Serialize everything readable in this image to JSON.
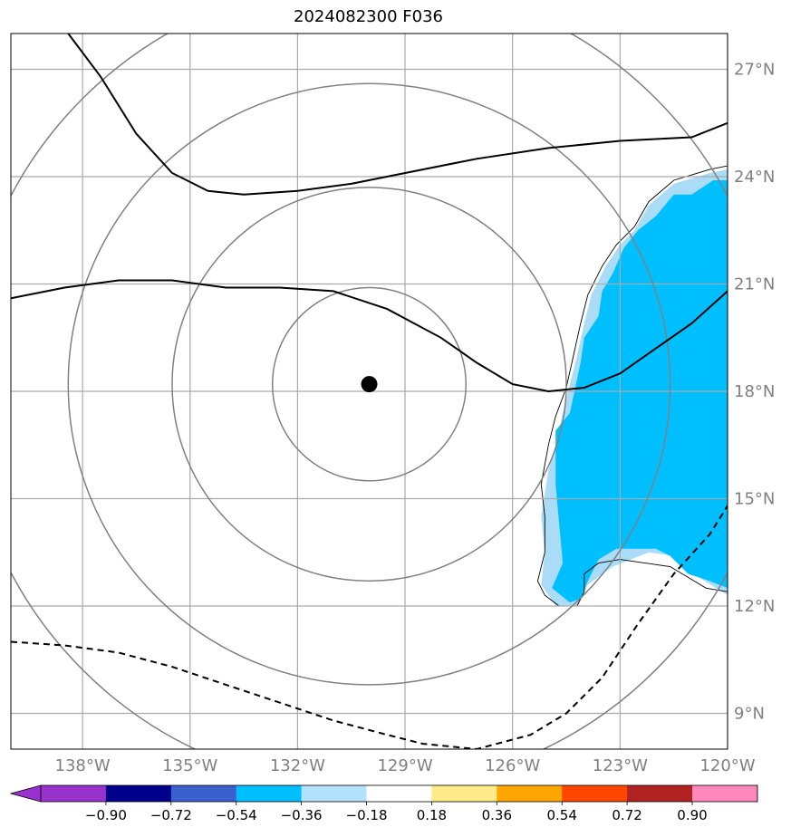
{
  "title": "2024082300 F036",
  "chart_data": {
    "type": "map",
    "title": "2024082300 F036",
    "projection": "equirectangular",
    "lon_range": [
      -140,
      -120
    ],
    "lat_range": [
      8,
      28
    ],
    "x_ticks": [
      {
        "value": -138,
        "label": "138°W"
      },
      {
        "value": -135,
        "label": "135°W"
      },
      {
        "value": -132,
        "label": "132°W"
      },
      {
        "value": -129,
        "label": "129°W"
      },
      {
        "value": -126,
        "label": "126°W"
      },
      {
        "value": -123,
        "label": "123°W"
      },
      {
        "value": -120,
        "label": "120°W"
      }
    ],
    "y_ticks": [
      {
        "value": 9,
        "label": "9°N"
      },
      {
        "value": 12,
        "label": "12°N"
      },
      {
        "value": 15,
        "label": "15°N"
      },
      {
        "value": 18,
        "label": "18°N"
      },
      {
        "value": 21,
        "label": "21°N"
      },
      {
        "value": 24,
        "label": "24°N"
      },
      {
        "value": 27,
        "label": "27°N"
      }
    ],
    "grid": true,
    "center": {
      "lon": -130.0,
      "lat": 18.2
    },
    "range_rings_deg": [
      2.7,
      5.5,
      8.4,
      11.3
    ],
    "contours": [
      {
        "style": "solid",
        "points": [
          [
            -138.4,
            28.0
          ],
          [
            -137.5,
            26.8
          ],
          [
            -136.5,
            25.2
          ],
          [
            -135.5,
            24.1
          ],
          [
            -134.5,
            23.6
          ],
          [
            -133.5,
            23.5
          ],
          [
            -132.0,
            23.6
          ],
          [
            -130.5,
            23.8
          ],
          [
            -129.0,
            24.1
          ],
          [
            -127.0,
            24.5
          ],
          [
            -125.0,
            24.8
          ],
          [
            -123.0,
            25.0
          ],
          [
            -121.0,
            25.1
          ],
          [
            -120.0,
            25.5
          ]
        ]
      },
      {
        "style": "solid",
        "points": [
          [
            -140.0,
            20.6
          ],
          [
            -138.5,
            20.9
          ],
          [
            -137.0,
            21.1
          ],
          [
            -135.5,
            21.1
          ],
          [
            -134.0,
            20.9
          ],
          [
            -132.5,
            20.9
          ],
          [
            -131.0,
            20.8
          ],
          [
            -129.5,
            20.3
          ],
          [
            -128.0,
            19.5
          ],
          [
            -127.0,
            18.8
          ],
          [
            -126.0,
            18.2
          ],
          [
            -125.0,
            18.0
          ],
          [
            -124.0,
            18.1
          ],
          [
            -123.0,
            18.5
          ],
          [
            -122.0,
            19.2
          ],
          [
            -121.0,
            19.9
          ],
          [
            -120.0,
            20.8
          ]
        ]
      },
      {
        "style": "dashed",
        "points": [
          [
            -140.0,
            11.0
          ],
          [
            -138.5,
            10.9
          ],
          [
            -137.0,
            10.7
          ],
          [
            -135.5,
            10.3
          ],
          [
            -134.0,
            9.8
          ],
          [
            -132.5,
            9.3
          ],
          [
            -131.0,
            8.8
          ],
          [
            -129.5,
            8.4
          ],
          [
            -128.5,
            8.15
          ],
          [
            -127.0,
            8.0
          ],
          [
            -125.5,
            8.4
          ],
          [
            -124.5,
            9.0
          ],
          [
            -123.5,
            10.0
          ],
          [
            -122.5,
            11.5
          ],
          [
            -121.5,
            12.9
          ],
          [
            -120.5,
            14.0
          ],
          [
            -120.0,
            14.8
          ]
        ]
      }
    ],
    "shaded_regions": [
      {
        "level": "-0.36 to -0.18",
        "color": "#aadcf8",
        "points": [
          [
            -120.0,
            24.2
          ],
          [
            -120.5,
            24.1
          ],
          [
            -121.5,
            23.8
          ],
          [
            -122.2,
            23.2
          ],
          [
            -122.6,
            22.5
          ],
          [
            -123.0,
            22.1
          ],
          [
            -123.4,
            21.5
          ],
          [
            -123.8,
            20.7
          ],
          [
            -124.0,
            19.9
          ],
          [
            -124.2,
            19.0
          ],
          [
            -124.4,
            18.2
          ],
          [
            -124.6,
            17.4
          ],
          [
            -124.8,
            16.5
          ],
          [
            -125.0,
            15.8
          ],
          [
            -125.2,
            14.5
          ],
          [
            -125.1,
            13.5
          ],
          [
            -125.2,
            12.6
          ],
          [
            -124.8,
            12.0
          ],
          [
            -124.2,
            12.0
          ],
          [
            -123.9,
            12.6
          ],
          [
            -123.2,
            13.1
          ],
          [
            -122.2,
            13.5
          ],
          [
            -121.5,
            13.4
          ],
          [
            -120.8,
            12.8
          ],
          [
            -120.0,
            12.3
          ]
        ]
      },
      {
        "level": "-0.54 to -0.36",
        "color": "#00bfff",
        "points": [
          [
            -120.0,
            23.9
          ],
          [
            -120.4,
            23.9
          ],
          [
            -121.0,
            23.5
          ],
          [
            -121.5,
            23.5
          ],
          [
            -122.0,
            22.9
          ],
          [
            -122.5,
            22.5
          ],
          [
            -122.9,
            22.0
          ],
          [
            -123.2,
            21.3
          ],
          [
            -123.5,
            20.8
          ],
          [
            -123.6,
            20.1
          ],
          [
            -124.0,
            19.5
          ],
          [
            -124.1,
            18.8
          ],
          [
            -124.4,
            17.4
          ],
          [
            -124.8,
            16.9
          ],
          [
            -124.8,
            15.4
          ],
          [
            -124.6,
            13.2
          ],
          [
            -124.9,
            12.5
          ],
          [
            -124.4,
            12.1
          ],
          [
            -124.1,
            12.2
          ],
          [
            -123.9,
            12.7
          ],
          [
            -123.6,
            13.3
          ],
          [
            -123.1,
            13.6
          ],
          [
            -122.0,
            13.6
          ],
          [
            -121.6,
            13.4
          ],
          [
            -121.1,
            12.9
          ],
          [
            -120.5,
            12.7
          ],
          [
            -120.0,
            12.5
          ]
        ]
      }
    ],
    "coastline": [
      [
        -120.0,
        24.3
      ],
      [
        -120.5,
        24.2
      ],
      [
        -121.5,
        23.9
      ],
      [
        -122.2,
        23.3
      ],
      [
        -122.6,
        22.6
      ],
      [
        -123.1,
        22.1
      ],
      [
        -123.5,
        21.5
      ],
      [
        -123.9,
        20.7
      ],
      [
        -124.1,
        19.9
      ],
      [
        -124.3,
        19.0
      ],
      [
        -124.5,
        18.1
      ],
      [
        -124.8,
        17.3
      ],
      [
        -125.0,
        16.5
      ],
      [
        -125.2,
        15.4
      ],
      [
        -125.1,
        14.5
      ],
      [
        -125.1,
        13.5
      ],
      [
        -125.3,
        12.7
      ],
      [
        -125.1,
        12.3
      ],
      [
        -124.7,
        12.0
      ],
      [
        -124.2,
        12.0
      ],
      [
        -124.0,
        12.4
      ],
      [
        -124.0,
        12.9
      ],
      [
        -123.6,
        13.2
      ],
      [
        -123.0,
        13.3
      ],
      [
        -122.3,
        13.2
      ],
      [
        -121.6,
        13.1
      ],
      [
        -121.1,
        12.8
      ],
      [
        -120.6,
        12.5
      ],
      [
        -120.0,
        12.4
      ]
    ],
    "colorbar": {
      "ticks": [
        "−0.90",
        "−0.72",
        "−0.54",
        "−0.36",
        "−0.18",
        "0.18",
        "0.36",
        "0.54",
        "0.72",
        "0.90"
      ],
      "under_color": "#9932cc",
      "over_color": "#ff88bb",
      "colors": [
        "#9932cc",
        "#00008b",
        "#3c5fd0",
        "#00bfff",
        "#b3e2ff",
        "#ffffff",
        "#ffea8a",
        "#ffa500",
        "#ff4500",
        "#b22222",
        "#ff88bb"
      ]
    }
  }
}
